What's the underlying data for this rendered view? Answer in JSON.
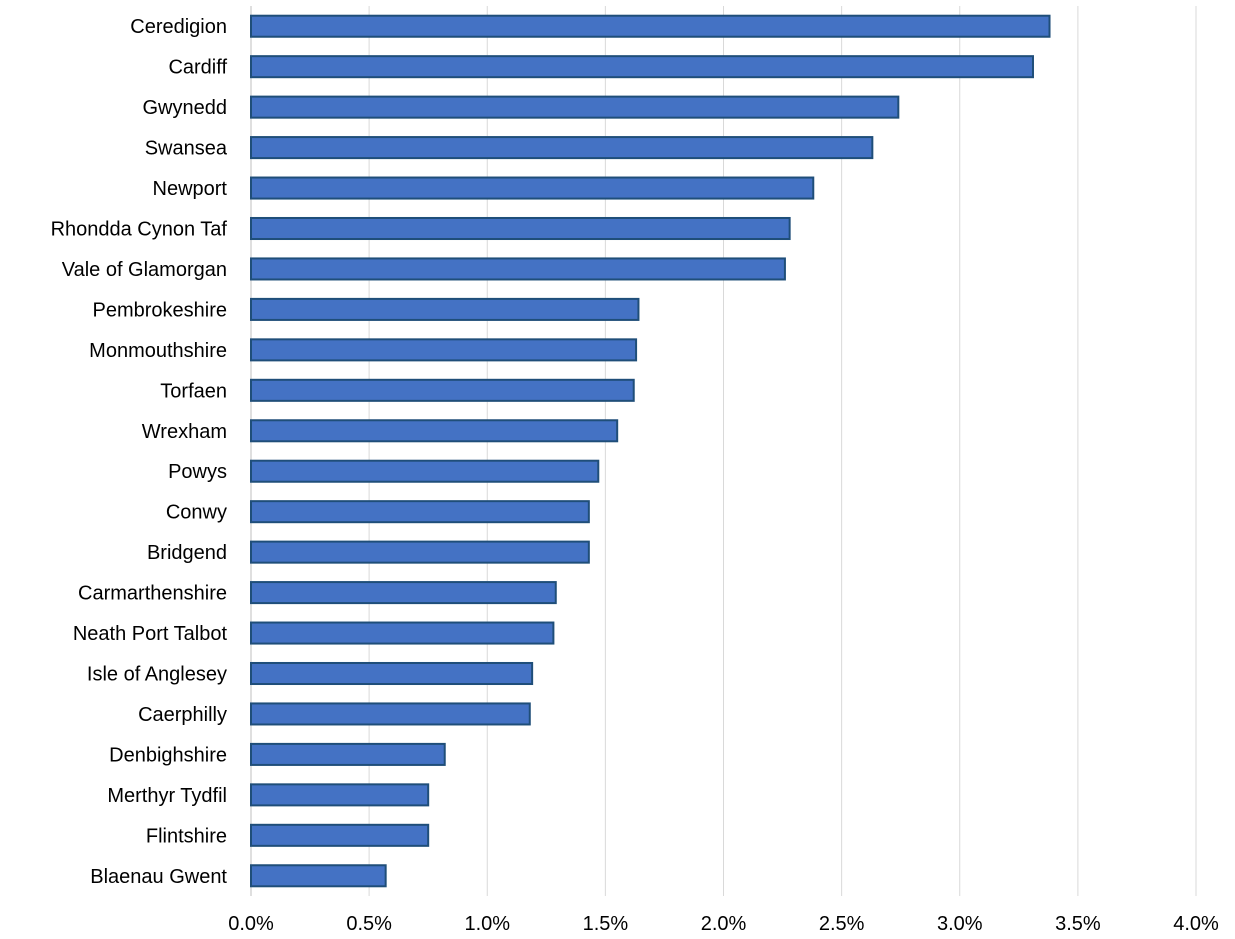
{
  "chart_data": {
    "type": "bar",
    "orientation": "horizontal",
    "title": "",
    "xlabel": "",
    "ylabel": "",
    "categories": [
      "Ceredigion",
      "Cardiff",
      "Gwynedd",
      "Swansea",
      "Newport",
      "Rhondda Cynon Taf",
      "Vale of Glamorgan",
      "Pembrokeshire",
      "Monmouthshire",
      "Torfaen",
      "Wrexham",
      "Powys",
      "Conwy",
      "Bridgend",
      "Carmarthenshire",
      "Neath Port Talbot",
      "Isle of Anglesey",
      "Caerphilly",
      "Denbighshire",
      "Merthyr Tydfil",
      "Flintshire",
      "Blaenau Gwent"
    ],
    "values": [
      3.38,
      3.31,
      2.74,
      2.63,
      2.38,
      2.28,
      2.26,
      1.64,
      1.63,
      1.62,
      1.55,
      1.47,
      1.43,
      1.43,
      1.29,
      1.28,
      1.19,
      1.18,
      0.82,
      0.75,
      0.75,
      0.57
    ],
    "xlim": [
      0,
      4
    ],
    "x_ticks": [
      0,
      0.5,
      1,
      1.5,
      2,
      2.5,
      3,
      3.5,
      4
    ],
    "x_tick_labels": [
      "0.0%",
      "0.5%",
      "1.0%",
      "1.5%",
      "2.0%",
      "2.5%",
      "3.0%",
      "3.5%",
      "4.0%"
    ],
    "grid": "vertical",
    "legend": "none",
    "bar_color": "#4472c4",
    "bar_edge_color": "#1f4e79"
  }
}
